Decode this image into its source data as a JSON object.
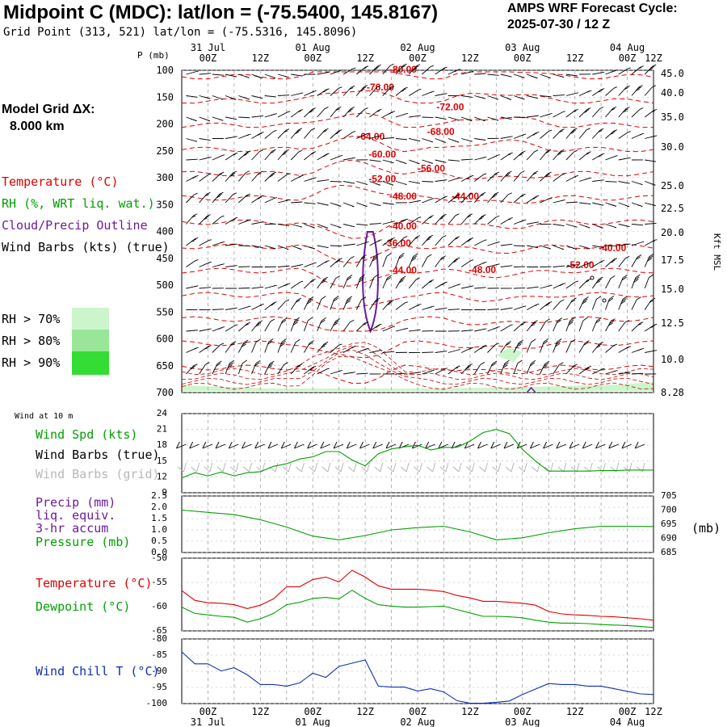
{
  "header": {
    "title": "Midpoint C (MDC):  lat/lon = (-75.5400, 145.8167)",
    "grid_point": "Grid Point (313, 521) lat/lon = (-75.5316, 145.8096)",
    "cycle_label": "AMPS WRF Forecast Cycle:",
    "cycle_value": "2025-07-30 / 12  Z",
    "model_grid_label": "Model Grid ΔX:",
    "model_grid_value": "8.000 km"
  },
  "time_axis": {
    "top_dates": [
      "31 Jul",
      "01 Aug",
      "02 Aug",
      "03 Aug",
      "04 Aug"
    ],
    "hours": [
      "00Z",
      "12Z",
      "00Z",
      "12Z",
      "00Z",
      "12Z",
      "00Z",
      "12Z",
      "00Z",
      "12Z"
    ],
    "bottom_dates": [
      "31 Jul",
      "01 Aug",
      "02 Aug",
      "03 Aug",
      "04 Aug"
    ]
  },
  "legend": {
    "temperature": "Temperature (°C)",
    "rh": "RH (%, WRT liq. wat.)",
    "cloud": "Cloud/Precip Outline",
    "wind": "Wind Barbs (kts) (true)",
    "rh70": "RH > 70%",
    "rh80": "RH > 80%",
    "rh90": "RH > 90%",
    "wind10m": "Wind at 10 m",
    "wind_spd": "Wind Spd (kts)",
    "wind_true": "Wind Barbs (true)",
    "wind_grid": "Wind Barbs (grid)",
    "precip1": "Precip (mm)",
    "precip2": "liq. equiv.",
    "precip3": "3-hr accum",
    "pressure": "Pressure (mb)",
    "pressure_unit": "(mb)",
    "temp2": "Temperature (°C)",
    "dewpoint": "Dewpoint (°C)",
    "windchill": "Wind Chill T (°C)"
  },
  "colors": {
    "temperature": "#e00000",
    "rh_green": "#00a000",
    "cloud": "#6a1b9a",
    "rh70": "#ccf5cc",
    "rh80": "#99e699",
    "rh90": "#33dd33",
    "windchill": "#1030b0",
    "grid_barb": "#b0b0b0"
  },
  "chart_data": [
    {
      "type": "heatmap",
      "name": "upper_air_cross_section",
      "y_label": "P (mb)",
      "right_label": "Kft MSL",
      "pressure_ticks": [
        "100",
        "150",
        "200",
        "250",
        "300",
        "350",
        "400",
        "450",
        "500",
        "550",
        "600",
        "650",
        "700"
      ],
      "height_ticks": [
        "45.0",
        "40.0",
        "35.0",
        "30.0",
        "25.0",
        "22.5",
        "20.0",
        "17.5",
        "15.0",
        "12.5",
        "10.0",
        "8.28"
      ],
      "temperature_labels": [
        {
          "text": "-80.00",
          "t": 11.0,
          "p": 97
        },
        {
          "text": "-76.00",
          "t": 9.8,
          "p": 130
        },
        {
          "text": "-72.00",
          "t": 13.5,
          "p": 167
        },
        {
          "text": "-68.00",
          "t": 13.0,
          "p": 213
        },
        {
          "text": "-64.00",
          "t": 9.3,
          "p": 222
        },
        {
          "text": "-60.00",
          "t": 9.9,
          "p": 255
        },
        {
          "text": "-56.00",
          "t": 12.5,
          "p": 281
        },
        {
          "text": "-52.00",
          "t": 9.9,
          "p": 301
        },
        {
          "text": "-48.00",
          "t": 11.0,
          "p": 333
        },
        {
          "text": "-44.00",
          "t": 14.3,
          "p": 333
        },
        {
          "text": "-40.00",
          "t": 11.0,
          "p": 389
        },
        {
          "text": "-36.00",
          "t": 10.7,
          "p": 420
        },
        {
          "text": "-40.00",
          "t": 22.1,
          "p": 429
        },
        {
          "text": "-52.00",
          "t": 20.4,
          "p": 461
        },
        {
          "text": "-44.00",
          "t": 11.0,
          "p": 471
        },
        {
          "text": "-48.00",
          "t": 15.2,
          "p": 470
        }
      ],
      "rh_thresholds": [
        "RH > 70%",
        "RH > 80%",
        "RH > 90%"
      ]
    },
    {
      "type": "line",
      "name": "wind_speed_10m",
      "ylabel": "Wind Spd (kts)",
      "ylim": [
        9,
        24
      ],
      "yticks": [
        9,
        12,
        15,
        18,
        21,
        24
      ],
      "x_range_hours": [
        0,
        108
      ],
      "series": [
        {
          "name": "Wind Spd (kts)",
          "x": [
            0,
            3,
            6,
            9,
            12,
            15,
            18,
            21,
            24,
            27,
            30,
            33,
            36,
            39,
            42,
            45,
            48,
            51,
            54,
            57,
            60,
            63,
            66,
            69,
            72,
            75,
            78,
            81,
            84,
            87,
            90,
            93,
            96,
            99,
            102,
            105,
            108
          ],
          "values": [
            11.8,
            12.8,
            12.2,
            12.9,
            12.2,
            12.8,
            13.0,
            14.0,
            14.5,
            15.4,
            15.8,
            16.8,
            16.8,
            15.2,
            14.1,
            16.4,
            17.3,
            17.7,
            18.0,
            17.1,
            17.6,
            17.6,
            18.8,
            20.4,
            21.0,
            20.2,
            17.2,
            15.0,
            13.1,
            13.1,
            13.1,
            13.1,
            13.2,
            13.2,
            13.3,
            13.3,
            13.3
          ]
        }
      ]
    },
    {
      "type": "line",
      "name": "precip_pressure",
      "ylabel": "Pressure (mb)",
      "left_ticks": [
        "0.0",
        "0.5",
        "1.0",
        "1.5",
        "2.0",
        "2.5"
      ],
      "right_ticks": [
        "685",
        "690",
        "695",
        "700",
        "705"
      ],
      "ylim_precip": [
        0,
        2.5
      ],
      "ylim_pressure": [
        685,
        705
      ],
      "precip_values_mm": [],
      "series": [
        {
          "name": "Pressure (mb)",
          "x": [
            0,
            6,
            12,
            18,
            24,
            30,
            36,
            42,
            48,
            54,
            60,
            66,
            72,
            78,
            84,
            90,
            96,
            102,
            108
          ],
          "values": [
            700.0,
            699.2,
            698.4,
            696.6,
            694.0,
            690.8,
            689.5,
            691.0,
            693.0,
            693.8,
            694.3,
            692.3,
            689.5,
            690.2,
            692.0,
            693.4,
            694.3,
            694.3,
            694.2
          ]
        }
      ]
    },
    {
      "type": "line",
      "name": "temperature_dewpoint",
      "ylim": [
        -65,
        -50
      ],
      "yticks": [
        "-65",
        "-60",
        "-55",
        "-50"
      ],
      "series": [
        {
          "name": "Temperature (°C)",
          "x": [
            0,
            3,
            6,
            9,
            12,
            15,
            18,
            21,
            24,
            27,
            30,
            33,
            36,
            39,
            42,
            45,
            48,
            51,
            54,
            57,
            60,
            63,
            66,
            69,
            72,
            75,
            78,
            81,
            84,
            87,
            90,
            93,
            96,
            99,
            102,
            105,
            108
          ],
          "values": [
            -56.7,
            -58.7,
            -59.2,
            -59.3,
            -59.6,
            -60.4,
            -59.7,
            -58.4,
            -55.9,
            -55.9,
            -54.4,
            -53.9,
            -54.9,
            -52.5,
            -53.9,
            -55.7,
            -56.4,
            -56.4,
            -56.4,
            -56.6,
            -56.9,
            -57.7,
            -58.2,
            -58.9,
            -58.9,
            -59.1,
            -59.3,
            -59.7,
            -61.0,
            -61.5,
            -61.7,
            -61.8,
            -62.0,
            -62.1,
            -62.3,
            -62.5,
            -62.8
          ]
        },
        {
          "name": "Dewpoint (°C)",
          "x": [
            0,
            3,
            6,
            9,
            12,
            15,
            18,
            21,
            24,
            27,
            30,
            33,
            36,
            39,
            42,
            45,
            48,
            51,
            54,
            57,
            60,
            63,
            66,
            69,
            72,
            75,
            78,
            81,
            84,
            87,
            90,
            93,
            96,
            99,
            102,
            105,
            108
          ],
          "values": [
            -60.1,
            -61.4,
            -61.7,
            -62.0,
            -62.2,
            -63.2,
            -62.5,
            -61.4,
            -59.6,
            -59.1,
            -58.3,
            -58.1,
            -58.4,
            -56.6,
            -58.3,
            -59.6,
            -59.9,
            -60.1,
            -60.1,
            -60.0,
            -59.9,
            -60.6,
            -61.3,
            -62.0,
            -62.0,
            -62.1,
            -62.3,
            -62.8,
            -63.2,
            -63.4,
            -63.4,
            -63.5,
            -63.7,
            -63.8,
            -63.9,
            -64.1,
            -64.3
          ]
        }
      ]
    },
    {
      "type": "line",
      "name": "wind_chill",
      "ylim": [
        -100,
        -80
      ],
      "yticks": [
        "-100",
        "-95",
        "-90",
        "-85",
        "-80"
      ],
      "series": [
        {
          "name": "Wind Chill T (°C)",
          "x": [
            0,
            3,
            6,
            9,
            12,
            15,
            18,
            21,
            24,
            27,
            30,
            33,
            36,
            39,
            42,
            45,
            48,
            51,
            54,
            57,
            60,
            63,
            66,
            69,
            72,
            75,
            78,
            81,
            84,
            87,
            90,
            93,
            96,
            99,
            102,
            105,
            108
          ],
          "values": [
            -84.0,
            -87.7,
            -87.7,
            -89.9,
            -88.9,
            -91.1,
            -94.1,
            -94.1,
            -94.6,
            -93.6,
            -90.6,
            -91.9,
            -88.5,
            -87.5,
            -86.5,
            -94.6,
            -94.9,
            -94.9,
            -96.1,
            -95.4,
            -96.4,
            -99.1,
            -99.9,
            -99.9,
            -99.6,
            -99.2,
            -97.2,
            -95.5,
            -93.8,
            -94.1,
            -94.1,
            -94.6,
            -94.6,
            -95.4,
            -96.2,
            -97.0,
            -97.2
          ]
        }
      ]
    }
  ]
}
